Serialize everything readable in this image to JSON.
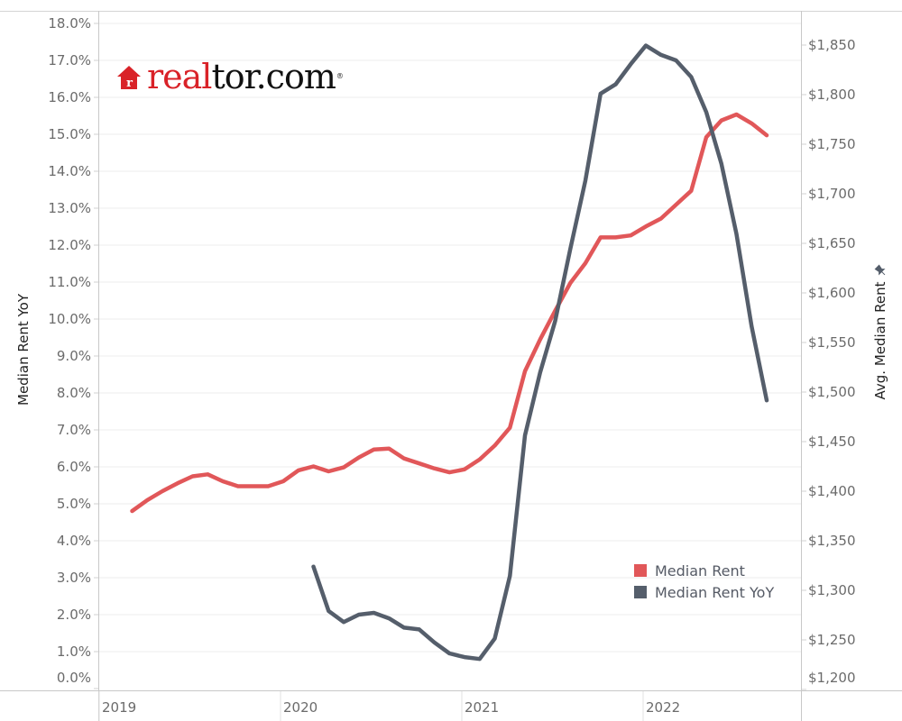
{
  "logo": {
    "part_red": "real",
    "part_black": "tor.com",
    "registered": "®",
    "icon": "house-r-icon",
    "brand_color": "#d92228"
  },
  "axes": {
    "left_title": "Median Rent YoY",
    "right_title": "Avg. Median Rent",
    "right_title_icon": "pin-icon",
    "left_ticks": [
      "18.0%",
      "17.0%",
      "16.0%",
      "15.0%",
      "14.0%",
      "13.0%",
      "12.0%",
      "11.0%",
      "10.0%",
      "9.0%",
      "8.0%",
      "7.0%",
      "6.0%",
      "5.0%",
      "4.0%",
      "3.0%",
      "2.0%",
      "1.0%",
      "0.0%"
    ],
    "right_ticks": [
      "$1,850",
      "$1,800",
      "$1,750",
      "$1,700",
      "$1,650",
      "$1,600",
      "$1,550",
      "$1,500",
      "$1,450",
      "$1,400",
      "$1,350",
      "$1,300",
      "$1,250",
      "$1,200"
    ],
    "x_ticks": [
      "2019",
      "2020",
      "2021",
      "2022"
    ]
  },
  "legend": {
    "items": [
      {
        "label": "Median Rent",
        "color": "#e15759"
      },
      {
        "label": "Median Rent YoY",
        "color": "#555e6b"
      }
    ]
  },
  "chart_data": {
    "type": "line",
    "title": "",
    "xlabel": "",
    "ylabel": "Median Rent YoY",
    "y2label": "Avg. Median Rent",
    "ylim": [
      0,
      18
    ],
    "y2lim": [
      1200,
      1850
    ],
    "grid": true,
    "legend_position": "bottom-right inside",
    "x_start": "2019-03",
    "x_step": "month",
    "series": [
      {
        "name": "Median Rent",
        "axis": "right",
        "color": "#e15759",
        "x": [
          "2019-03",
          "2019-04",
          "2019-05",
          "2019-06",
          "2019-07",
          "2019-08",
          "2019-09",
          "2019-10",
          "2019-11",
          "2019-12",
          "2020-01",
          "2020-02",
          "2020-03",
          "2020-04",
          "2020-05",
          "2020-06",
          "2020-07",
          "2020-08",
          "2020-09",
          "2020-10",
          "2020-11",
          "2020-12",
          "2021-01",
          "2021-02",
          "2021-03",
          "2021-04",
          "2021-05",
          "2021-06",
          "2021-07",
          "2021-08",
          "2021-09",
          "2021-10",
          "2021-11",
          "2021-12",
          "2022-01",
          "2022-02",
          "2022-03",
          "2022-04",
          "2022-05",
          "2022-06",
          "2022-07",
          "2022-08",
          "2022-09"
        ],
        "values": [
          1380,
          1391,
          1400,
          1408,
          1415,
          1417,
          1410,
          1405,
          1405,
          1405,
          1410,
          1421,
          1425,
          1420,
          1424,
          1434,
          1442,
          1443,
          1433,
          1428,
          1423,
          1419,
          1422,
          1432,
          1446,
          1464,
          1521,
          1553,
          1582,
          1610,
          1630,
          1656,
          1656,
          1658,
          1667,
          1675,
          1689,
          1703,
          1757,
          1774,
          1780,
          1771,
          1759
        ]
      },
      {
        "name": "Median Rent YoY",
        "axis": "left",
        "color": "#555e6b",
        "x": [
          "2020-03",
          "2020-04",
          "2020-05",
          "2020-06",
          "2020-07",
          "2020-08",
          "2020-09",
          "2020-10",
          "2020-11",
          "2020-12",
          "2021-01",
          "2021-02",
          "2021-03",
          "2021-04",
          "2021-05",
          "2021-06",
          "2021-07",
          "2021-08",
          "2021-09",
          "2021-10",
          "2021-11",
          "2021-12",
          "2022-01",
          "2022-02",
          "2022-03",
          "2022-04",
          "2022-05",
          "2022-06",
          "2022-07",
          "2022-08",
          "2022-09"
        ],
        "values": [
          3.3,
          2.1,
          1.8,
          2.0,
          2.05,
          1.9,
          1.65,
          1.6,
          1.25,
          0.95,
          0.85,
          0.8,
          1.35,
          3.05,
          6.85,
          8.55,
          9.95,
          11.9,
          13.75,
          16.1,
          16.35,
          16.9,
          17.4,
          17.15,
          17.0,
          16.55,
          15.6,
          14.2,
          12.3,
          9.8,
          7.8
        ]
      }
    ]
  }
}
